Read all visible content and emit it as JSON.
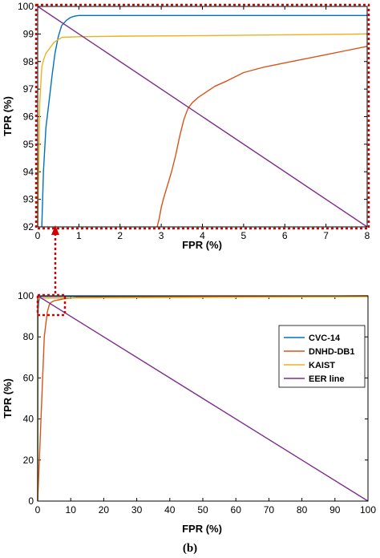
{
  "figure": {
    "caption": "(b)"
  },
  "colors": {
    "cvc14": "#0072BD",
    "dnhd": "#D95319",
    "kaist": "#EDB120",
    "eer": "#7E2F8E",
    "highlight": "#d40000"
  },
  "chart_data": [
    {
      "type": "line",
      "title": "",
      "xlabel": "FPR (%)",
      "ylabel": "TPR (%)",
      "xlim": [
        0,
        8
      ],
      "ylim": [
        92,
        100
      ],
      "xticks": [
        "0",
        "1",
        "2",
        "3",
        "4",
        "5",
        "6",
        "7",
        "8"
      ],
      "yticks": [
        "92",
        "93",
        "94",
        "95",
        "96",
        "97",
        "98",
        "99",
        "100"
      ],
      "grid": false,
      "series": [
        {
          "name": "CVC-14",
          "x": [
            0.1,
            0.14,
            0.2,
            0.28,
            0.35,
            0.42,
            0.5,
            0.58,
            0.7,
            0.8,
            0.9,
            1.0,
            2.0,
            4.0,
            6.0,
            8.0
          ],
          "y": [
            92.0,
            94.0,
            95.6,
            96.6,
            97.5,
            98.3,
            98.9,
            99.3,
            99.5,
            99.6,
            99.65,
            99.67,
            99.67,
            99.67,
            99.67,
            99.67
          ]
        },
        {
          "name": "DNHD-DB1",
          "x": [
            2.9,
            2.95,
            3.0,
            3.05,
            3.15,
            3.25,
            3.35,
            3.45,
            3.55,
            3.65,
            3.75,
            3.9,
            4.1,
            4.3,
            4.6,
            5.0,
            5.5,
            6.0,
            6.5,
            7.0,
            7.5,
            8.0
          ],
          "y": [
            92.0,
            92.3,
            92.7,
            93.0,
            93.5,
            94.0,
            94.6,
            95.3,
            95.9,
            96.3,
            96.5,
            96.7,
            96.9,
            97.1,
            97.3,
            97.6,
            97.8,
            97.95,
            98.1,
            98.25,
            98.4,
            98.55
          ]
        },
        {
          "name": "KAIST",
          "x": [
            0.0,
            0.05,
            0.1,
            0.15,
            0.2,
            0.3,
            0.4,
            0.5,
            0.6,
            1.0,
            2.0,
            4.0,
            6.0,
            8.0
          ],
          "y": [
            92.0,
            96.5,
            97.8,
            98.1,
            98.3,
            98.5,
            98.7,
            98.8,
            98.88,
            98.9,
            98.92,
            98.94,
            98.97,
            99.0
          ]
        },
        {
          "name": "EER line",
          "x": [
            0,
            8
          ],
          "y": [
            100,
            92
          ]
        }
      ]
    },
    {
      "type": "line",
      "title": "",
      "xlabel": "FPR (%)",
      "ylabel": "TPR (%)",
      "xlim": [
        0,
        100
      ],
      "ylim": [
        0,
        100
      ],
      "xticks": [
        "0",
        "10",
        "20",
        "30",
        "40",
        "50",
        "60",
        "70",
        "80",
        "90",
        "100"
      ],
      "yticks": [
        "0",
        "20",
        "40",
        "60",
        "80",
        "100"
      ],
      "grid": false,
      "legend": "top-right",
      "series": [
        {
          "name": "CVC-14",
          "x": [
            0,
            0.1,
            0.3,
            0.6,
            1.0,
            100
          ],
          "y": [
            0,
            92,
            97,
            99.3,
            99.67,
            99.67
          ]
        },
        {
          "name": "DNHD-DB1",
          "x": [
            0,
            1.0,
            2.0,
            2.9,
            3.5,
            4.0,
            5.0,
            6.0,
            8.0,
            12.0,
            100
          ],
          "y": [
            0,
            40,
            80,
            92,
            95.5,
            96.8,
            97.6,
            97.95,
            98.55,
            99.2,
            100
          ]
        },
        {
          "name": "KAIST",
          "x": [
            0,
            0.02,
            0.1,
            0.3,
            0.6,
            100
          ],
          "y": [
            0,
            92,
            97.8,
            98.5,
            98.88,
            99.6
          ]
        },
        {
          "name": "EER line",
          "x": [
            0,
            100
          ],
          "y": [
            100,
            0
          ]
        }
      ]
    }
  ]
}
